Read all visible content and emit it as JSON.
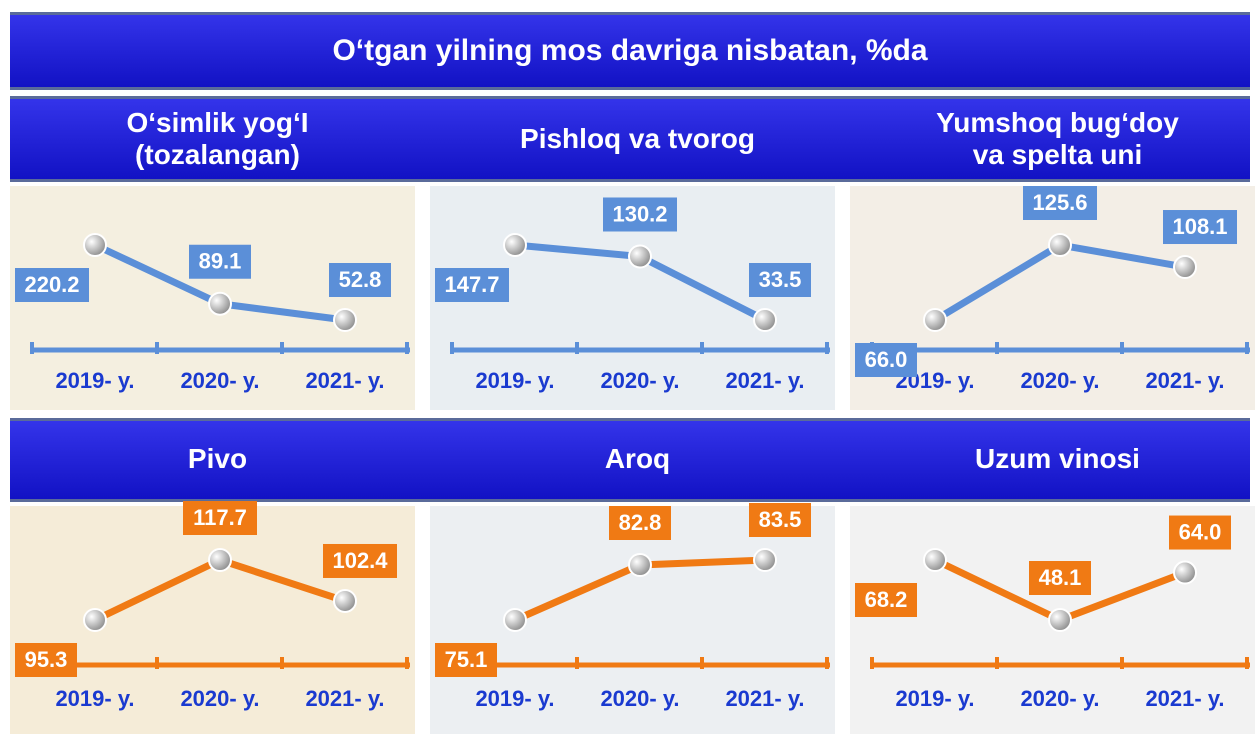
{
  "title": "O‘tgan yilning mos davriga nisbatan, %da",
  "chart_data": [
    {
      "type": "line",
      "title": "O‘simlik yog‘I (tozalangan)",
      "categories": [
        "2019- y.",
        "2020- y.",
        "2021- y."
      ],
      "values": [
        220.2,
        89.1,
        52.8
      ],
      "value_labels": [
        "220.2",
        "89.1",
        "52.8"
      ],
      "color": "#5b8fd8"
    },
    {
      "type": "line",
      "title": "Pishloq va tvorog",
      "categories": [
        "2019- y.",
        "2020- y.",
        "2021- y."
      ],
      "values": [
        147.7,
        130.2,
        33.5
      ],
      "value_labels": [
        "147.7",
        "130.2",
        "33.5"
      ],
      "color": "#5b8fd8"
    },
    {
      "type": "line",
      "title": "Yumshoq bug‘doy va spelta uni",
      "categories": [
        "2019- y.",
        "2020- y.",
        "2021- y."
      ],
      "values": [
        66.0,
        125.6,
        108.1
      ],
      "value_labels": [
        "66.0",
        "125.6",
        "108.1"
      ],
      "color": "#5b8fd8"
    },
    {
      "type": "line",
      "title": "Pivo",
      "categories": [
        "2019- y.",
        "2020- y.",
        "2021- y."
      ],
      "values": [
        95.3,
        117.7,
        102.4
      ],
      "value_labels": [
        "95.3",
        "117.7",
        "102.4"
      ],
      "color": "#f07a14"
    },
    {
      "type": "line",
      "title": "Aroq",
      "categories": [
        "2019- y.",
        "2020- y.",
        "2021- y."
      ],
      "values": [
        75.1,
        82.8,
        83.5
      ],
      "value_labels": [
        "75.1",
        "82.8",
        "83.5"
      ],
      "color": "#f07a14"
    },
    {
      "type": "line",
      "title": "Uzum vinosi",
      "categories": [
        "2019- y.",
        "2020- y.",
        "2021- y."
      ],
      "values": [
        68.2,
        48.1,
        64.0
      ],
      "value_labels": [
        "68.2",
        "48.1",
        "64.0"
      ],
      "color": "#f07a14"
    }
  ]
}
